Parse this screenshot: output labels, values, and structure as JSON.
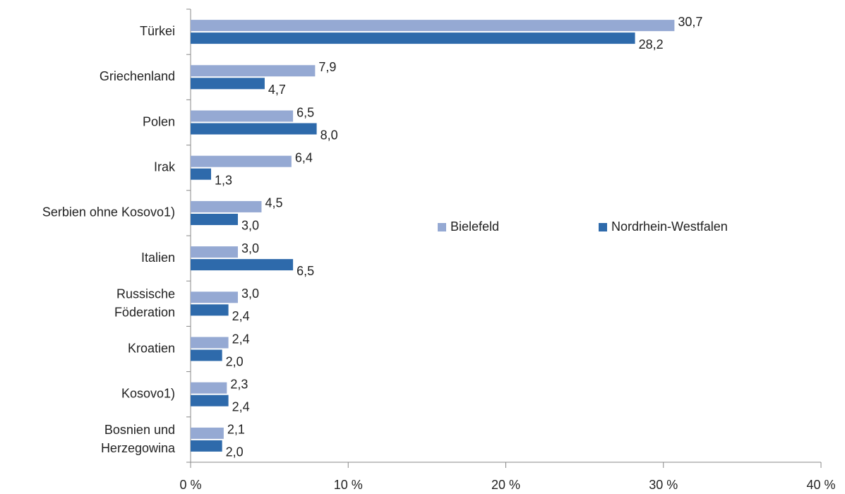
{
  "chart_data": {
    "type": "barh",
    "categories": [
      "Türkei",
      "Griechenland",
      "Polen",
      "Irak",
      "Serbien ohne Kosovo1)",
      "Italien",
      "Russische\nFöderation",
      "Kroatien",
      "Kosovo1)",
      "Bosnien und\nHerzegowina"
    ],
    "series": [
      {
        "name": "Bielefeld",
        "color": "#95a9d3",
        "values": [
          30.7,
          7.9,
          6.5,
          6.4,
          4.5,
          3.0,
          3.0,
          2.4,
          2.3,
          2.1
        ],
        "value_labels": [
          "30,7",
          "7,9",
          "6,5",
          "6,4",
          "4,5",
          "3,0",
          "3,0",
          "2,4",
          "2,3",
          "2,1"
        ]
      },
      {
        "name": "Nordrhein-Westfalen",
        "color": "#2e6aab",
        "values": [
          28.2,
          4.7,
          8.0,
          1.3,
          3.0,
          6.5,
          2.4,
          2.0,
          2.4,
          2.0
        ],
        "value_labels": [
          "28,2",
          "4,7",
          "8,0",
          "1,3",
          "3,0",
          "6,5",
          "2,4",
          "2,0",
          "2,4",
          "2,0"
        ]
      }
    ],
    "xlim": [
      0,
      40
    ],
    "xticks": [
      {
        "value": 0,
        "label": "0 %"
      },
      {
        "value": 10,
        "label": "10 %"
      },
      {
        "value": 20,
        "label": "20 %"
      },
      {
        "value": 30,
        "label": "30 %"
      },
      {
        "value": 40,
        "label": "40 %"
      }
    ],
    "grid": false,
    "legend": "center"
  }
}
